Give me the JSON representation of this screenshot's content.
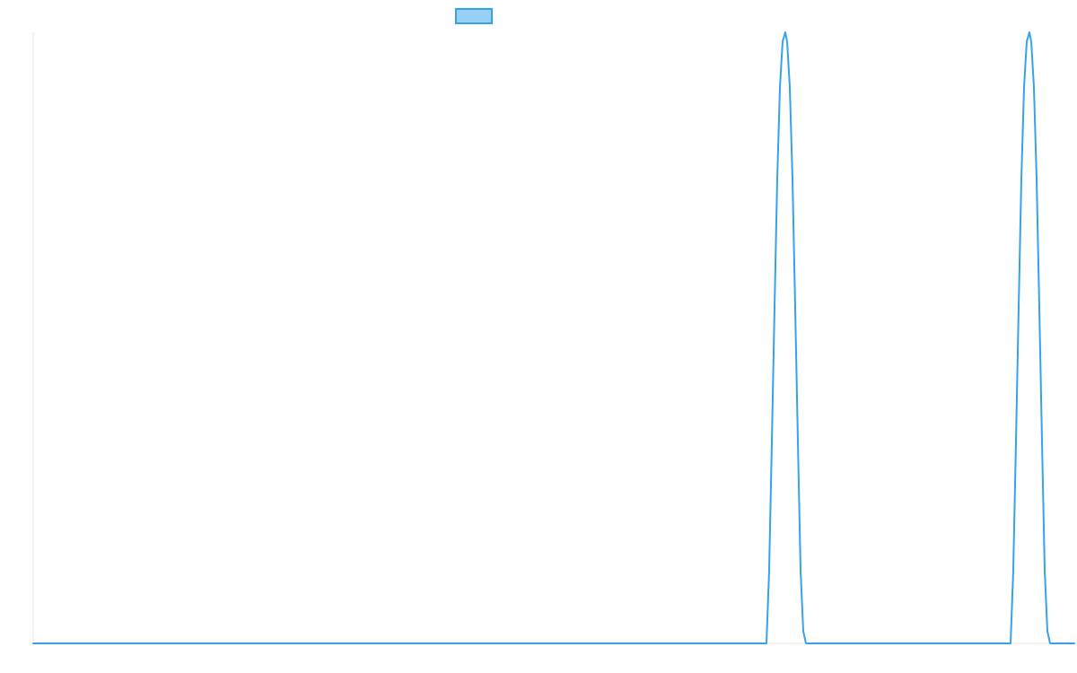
{
  "chart_data": {
    "type": "line",
    "title": "",
    "xlabel": "",
    "ylabel": "",
    "grid": false,
    "legend": {
      "position": "top",
      "entries": [
        ""
      ]
    },
    "x_range": [
      0,
      1160
    ],
    "y_range": [
      0,
      1
    ],
    "series": [
      {
        "color": "#36a2eb",
        "fill_color": "#9ad0f5",
        "x": [
          0,
          817,
          820,
          823,
          826,
          829,
          832,
          835,
          838,
          840,
          843,
          846,
          849,
          852,
          855,
          858,
          861,
          863,
          1089,
          1092,
          1095,
          1098,
          1101,
          1104,
          1107,
          1110,
          1112,
          1115,
          1118,
          1121,
          1124,
          1127,
          1130,
          1133,
          1135,
          1160
        ],
        "y": [
          0,
          0,
          0.12,
          0.33,
          0.55,
          0.76,
          0.91,
          0.985,
          1.0,
          0.985,
          0.91,
          0.76,
          0.55,
          0.33,
          0.12,
          0.02,
          0,
          0,
          0,
          0.12,
          0.33,
          0.55,
          0.76,
          0.91,
          0.985,
          1.0,
          0.985,
          0.91,
          0.76,
          0.55,
          0.33,
          0.12,
          0.02,
          0,
          0,
          0
        ]
      }
    ]
  }
}
